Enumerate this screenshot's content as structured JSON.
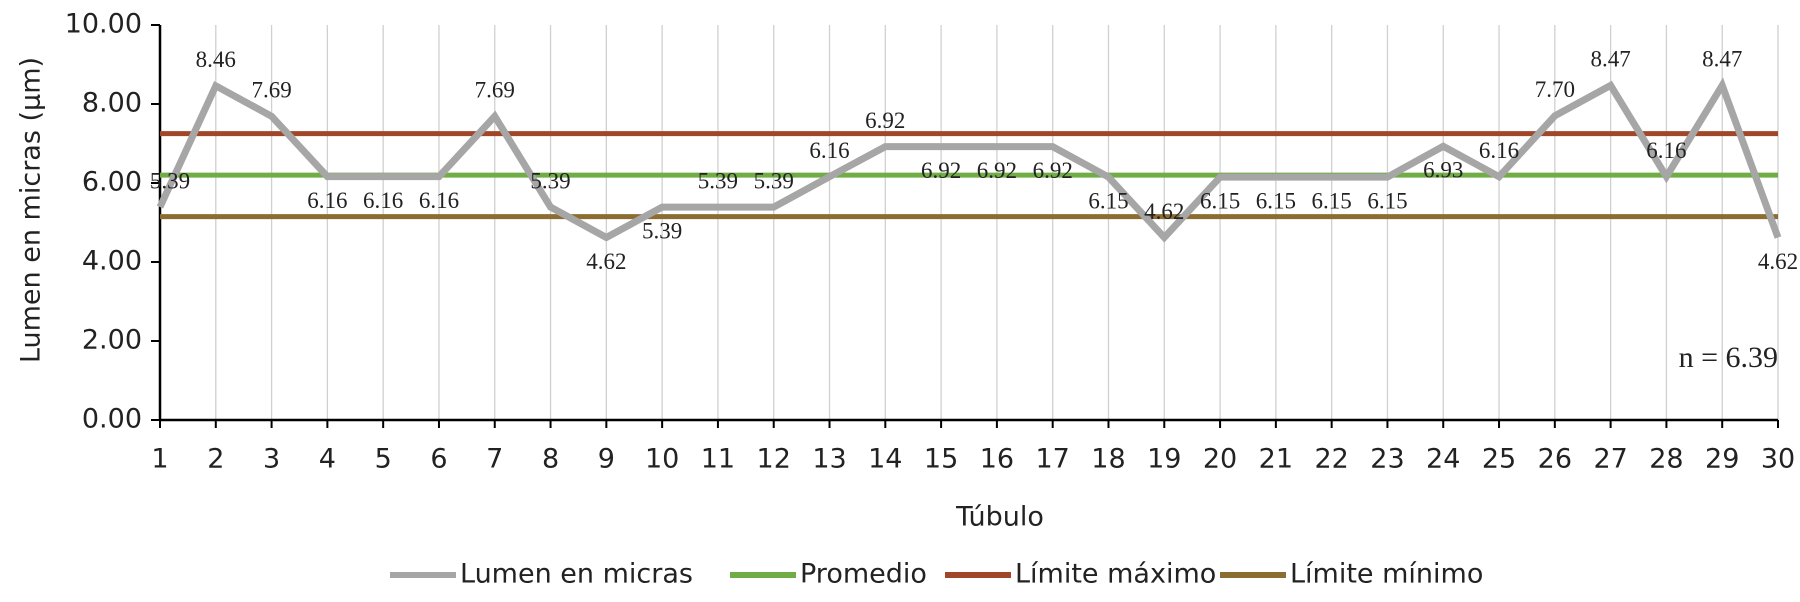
{
  "chart_data": {
    "type": "line",
    "y_label": "Lumen en micras (µm)",
    "x_label": "Túbulo",
    "annotation": "n = 6.39",
    "categories": [
      "1",
      "2",
      "3",
      "4",
      "5",
      "6",
      "7",
      "8",
      "9",
      "10",
      "11",
      "12",
      "13",
      "14",
      "15",
      "16",
      "17",
      "18",
      "19",
      "20",
      "21",
      "22",
      "23",
      "24",
      "25",
      "26",
      "27",
      "28",
      "29",
      "30"
    ],
    "series": [
      {
        "name": "Lumen en micras",
        "color": "#a6a6a6",
        "labeled": true,
        "values": [
          5.39,
          8.46,
          7.69,
          6.16,
          6.16,
          6.16,
          7.69,
          5.39,
          4.62,
          5.39,
          5.39,
          5.39,
          6.16,
          6.92,
          6.92,
          6.92,
          6.92,
          6.15,
          4.62,
          6.15,
          6.15,
          6.15,
          6.15,
          6.93,
          6.16,
          7.7,
          8.47,
          6.16,
          8.47,
          4.62
        ],
        "value_labels": [
          "5.39",
          "8.46",
          "7.69",
          "6.16",
          "6.16",
          "6.16",
          "7.69",
          "5.39",
          "4.62",
          "5.39",
          "5.39",
          "5.39",
          "6.16",
          "6.92",
          "6.92",
          "6.92",
          "6.92",
          "6.15",
          "4.62",
          "6.15",
          "6.15",
          "6.15",
          "6.15",
          "6.93",
          "6.16",
          "7.70",
          "8.47",
          "6.16",
          "8.47",
          "4.62"
        ]
      },
      {
        "name": "Promedio",
        "color": "#70ad47",
        "values": [
          6.2,
          6.2,
          6.2,
          6.2,
          6.2,
          6.2,
          6.2,
          6.2,
          6.2,
          6.2,
          6.2,
          6.2,
          6.2,
          6.2,
          6.2,
          6.2,
          6.2,
          6.2,
          6.2,
          6.2,
          6.2,
          6.2,
          6.2,
          6.2,
          6.2,
          6.2,
          6.2,
          6.2,
          6.2,
          6.2
        ]
      },
      {
        "name": "Límite máximo",
        "color": "#a0472a",
        "values": [
          7.25,
          7.25,
          7.25,
          7.25,
          7.25,
          7.25,
          7.25,
          7.25,
          7.25,
          7.25,
          7.25,
          7.25,
          7.25,
          7.25,
          7.25,
          7.25,
          7.25,
          7.25,
          7.25,
          7.25,
          7.25,
          7.25,
          7.25,
          7.25,
          7.25,
          7.25,
          7.25,
          7.25,
          7.25,
          7.25
        ]
      },
      {
        "name": "Límite mínimo",
        "color": "#8c6d31",
        "values": [
          5.15,
          5.15,
          5.15,
          5.15,
          5.15,
          5.15,
          5.15,
          5.15,
          5.15,
          5.15,
          5.15,
          5.15,
          5.15,
          5.15,
          5.15,
          5.15,
          5.15,
          5.15,
          5.15,
          5.15,
          5.15,
          5.15,
          5.15,
          5.15,
          5.15,
          5.15,
          5.15,
          5.15,
          5.15,
          5.15
        ]
      }
    ],
    "ylim": [
      0,
      10
    ],
    "yticks": [
      {
        "value": 0,
        "label": "0.00"
      },
      {
        "value": 2,
        "label": "2.00"
      },
      {
        "value": 4,
        "label": "4.00"
      },
      {
        "value": 6,
        "label": "6.00"
      },
      {
        "value": 8,
        "label": "8.00"
      },
      {
        "value": 10,
        "label": "10.00"
      }
    ],
    "grid": true,
    "legend": "bottom"
  }
}
